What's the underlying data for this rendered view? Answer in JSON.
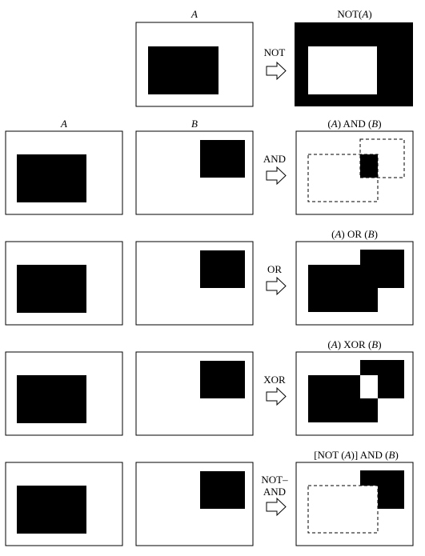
{
  "top": {
    "header_a": "A",
    "op_label": "NOT",
    "result_title": [
      {
        "t": "NOT(",
        "i": false
      },
      {
        "t": "A",
        "i": true
      },
      {
        "t": ")",
        "i": false
      }
    ]
  },
  "headers": {
    "a": "A",
    "b": "B"
  },
  "rows": [
    {
      "id": "and",
      "op_lines": [
        "AND"
      ],
      "result_title": [
        {
          "t": "(",
          "i": false
        },
        {
          "t": "A",
          "i": true
        },
        {
          "t": ") AND (",
          "i": false
        },
        {
          "t": "B",
          "i": true
        },
        {
          "t": ")",
          "i": false
        }
      ]
    },
    {
      "id": "or",
      "op_lines": [
        "OR"
      ],
      "result_title": [
        {
          "t": "(",
          "i": false
        },
        {
          "t": "A",
          "i": true
        },
        {
          "t": ") OR (",
          "i": false
        },
        {
          "t": "B",
          "i": true
        },
        {
          "t": ")",
          "i": false
        }
      ]
    },
    {
      "id": "xor",
      "op_lines": [
        "XOR"
      ],
      "result_title": [
        {
          "t": "(",
          "i": false
        },
        {
          "t": "A",
          "i": true
        },
        {
          "t": ") XOR (",
          "i": false
        },
        {
          "t": "B",
          "i": true
        },
        {
          "t": ")",
          "i": false
        }
      ]
    },
    {
      "id": "not-and",
      "op_lines": [
        "NOT–",
        "AND"
      ],
      "result_title": [
        {
          "t": "[NOT (",
          "i": false
        },
        {
          "t": "A",
          "i": true
        },
        {
          "t": ")] AND (",
          "i": false
        },
        {
          "t": "B",
          "i": true
        },
        {
          "t": ")",
          "i": false
        }
      ]
    }
  ]
}
